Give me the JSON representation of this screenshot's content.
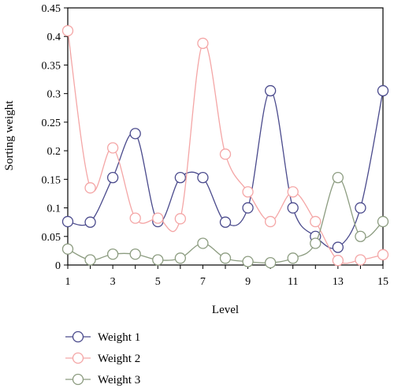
{
  "chart_data": {
    "type": "line",
    "xlabel": "Level",
    "ylabel": "Sorting weight",
    "xlim": [
      1,
      15
    ],
    "ylim": [
      0,
      0.45
    ],
    "x": [
      1,
      2,
      3,
      4,
      5,
      6,
      7,
      8,
      9,
      10,
      11,
      12,
      13,
      14,
      15
    ],
    "x_ticks": [
      "1",
      "3",
      "5",
      "7",
      "9",
      "11",
      "13",
      "15"
    ],
    "x_tick_values": [
      1,
      3,
      5,
      7,
      9,
      11,
      13,
      15
    ],
    "y_ticks": [
      "0",
      "0.05",
      "0.1",
      "0.15",
      "0.2",
      "0.25",
      "0.3",
      "0.35",
      "0.4",
      "0.45"
    ],
    "y_tick_values": [
      0,
      0.05,
      0.1,
      0.15,
      0.2,
      0.25,
      0.3,
      0.35,
      0.4,
      0.45
    ],
    "grid": false,
    "legend_position": "bottom-left",
    "series": [
      {
        "name": "Weight 1",
        "color": "#4a4a8c",
        "values": [
          0.076,
          0.075,
          0.153,
          0.23,
          0.076,
          0.153,
          0.153,
          0.075,
          0.1,
          0.305,
          0.1,
          0.05,
          0.031,
          0.1,
          0.305
        ]
      },
      {
        "name": "Weight 2",
        "color": "#f4a6a6",
        "values": [
          0.41,
          0.135,
          0.205,
          0.082,
          0.082,
          0.081,
          0.388,
          0.194,
          0.128,
          0.076,
          0.128,
          0.076,
          0.008,
          0.009,
          0.018
        ]
      },
      {
        "name": "Weight 3",
        "color": "#8c9c80",
        "values": [
          0.028,
          0.009,
          0.019,
          0.019,
          0.009,
          0.012,
          0.038,
          0.012,
          0.006,
          0.004,
          0.012,
          0.038,
          0.153,
          0.05,
          0.076
        ]
      }
    ]
  }
}
